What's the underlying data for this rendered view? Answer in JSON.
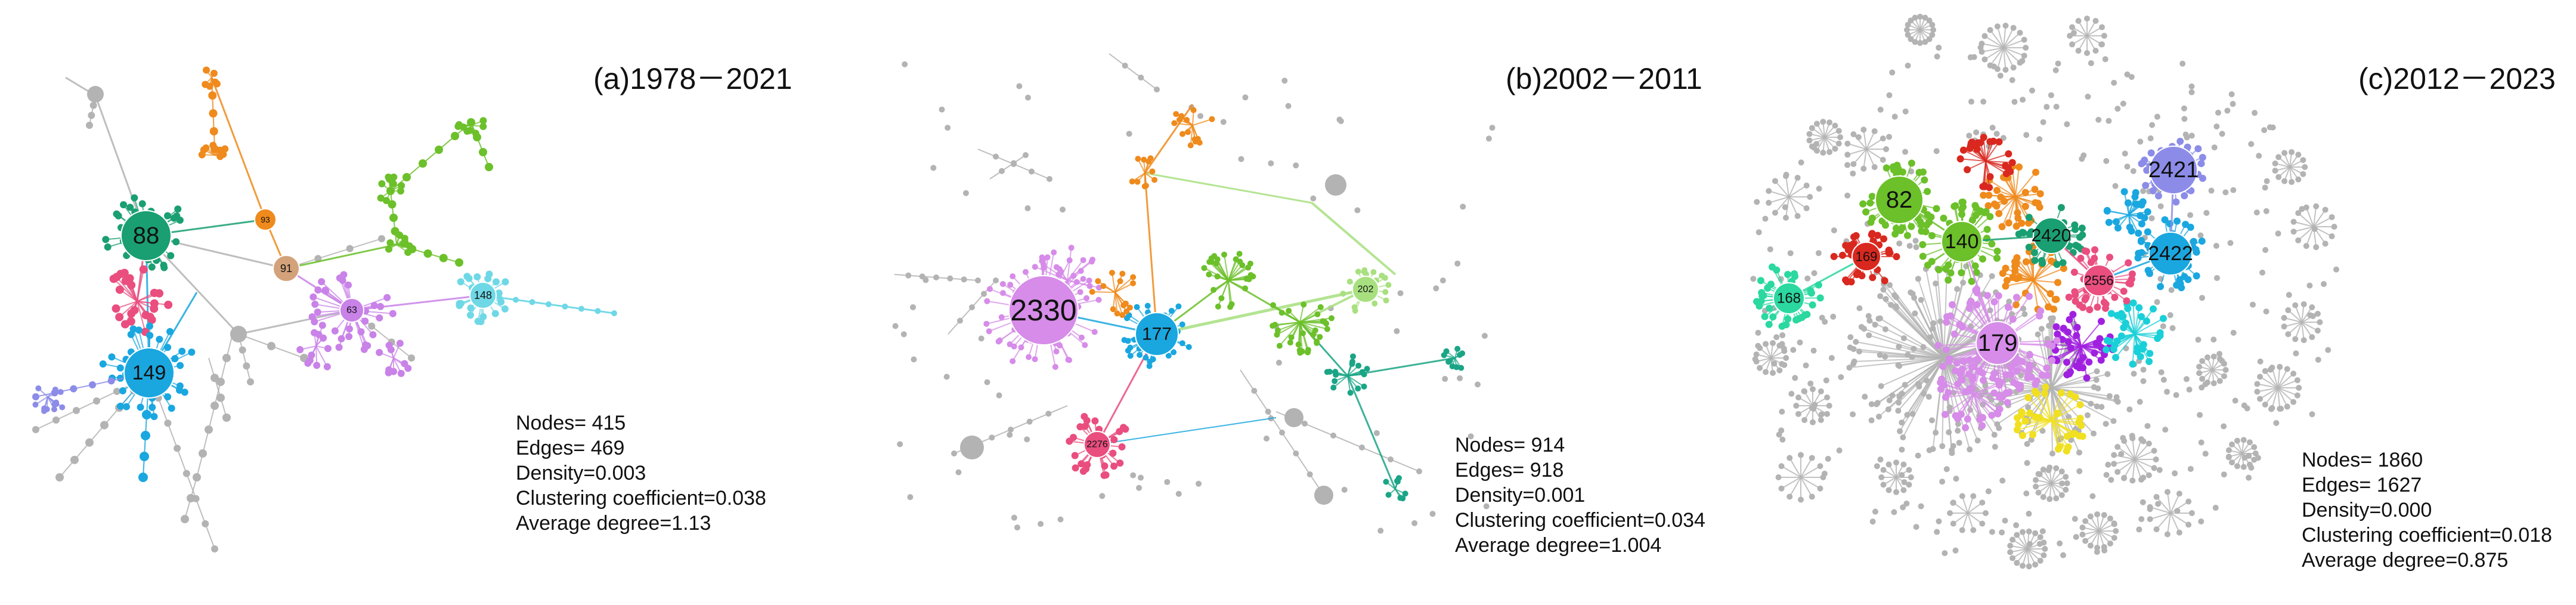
{
  "panels": [
    {
      "title": "(a)1978－2021",
      "stats": {
        "nodes": "Nodes= 415",
        "edges": "Edges= 469",
        "density": "Density=0.003",
        "clustering": "Clustering coefficient=0.038",
        "degree": "Average degree=1.13"
      },
      "hubs": [
        {
          "label": "88",
          "color": "#1a9f72"
        },
        {
          "label": "149",
          "color": "#1aa7e0"
        },
        {
          "label": "148",
          "color": "#6fd8e6"
        },
        {
          "label": "63",
          "color": "#c982e8"
        },
        {
          "label": "91",
          "color": "#d4a27a"
        },
        {
          "label": "93",
          "color": "#ef8a1c"
        }
      ]
    },
    {
      "title": "(b)2002－2011",
      "stats": {
        "nodes": "Nodes= 914",
        "edges": "Edges= 918",
        "density": "Density=0.001",
        "clustering": "Clustering coefficient=0.034",
        "degree": "Average degree=1.004"
      },
      "hubs": [
        {
          "label": "2330",
          "color": "#d68ce8"
        },
        {
          "label": "177",
          "color": "#1aa7e0"
        },
        {
          "label": "202",
          "color": "#a8e080"
        },
        {
          "label": "2276",
          "color": "#e94e7f"
        }
      ]
    },
    {
      "title": "(c)2012－2023",
      "stats": {
        "nodes": "Nodes= 1860",
        "edges": "Edges= 1627",
        "density": "Density=0.000",
        "clustering": "Clustering coefficient=0.018",
        "degree": "Average degree=0.875"
      },
      "hubs": [
        {
          "label": "82",
          "color": "#6cc02a"
        },
        {
          "label": "140",
          "color": "#6cc02a"
        },
        {
          "label": "169",
          "color": "#d9281f"
        },
        {
          "label": "168",
          "color": "#2ad8a0"
        },
        {
          "label": "2420",
          "color": "#1a9f72"
        },
        {
          "label": "2421",
          "color": "#8c8ce8"
        },
        {
          "label": "2422",
          "color": "#1aa7e0"
        },
        {
          "label": "2556",
          "color": "#e94e7f"
        },
        {
          "label": "179",
          "color": "#d68ce8"
        }
      ]
    }
  ]
}
